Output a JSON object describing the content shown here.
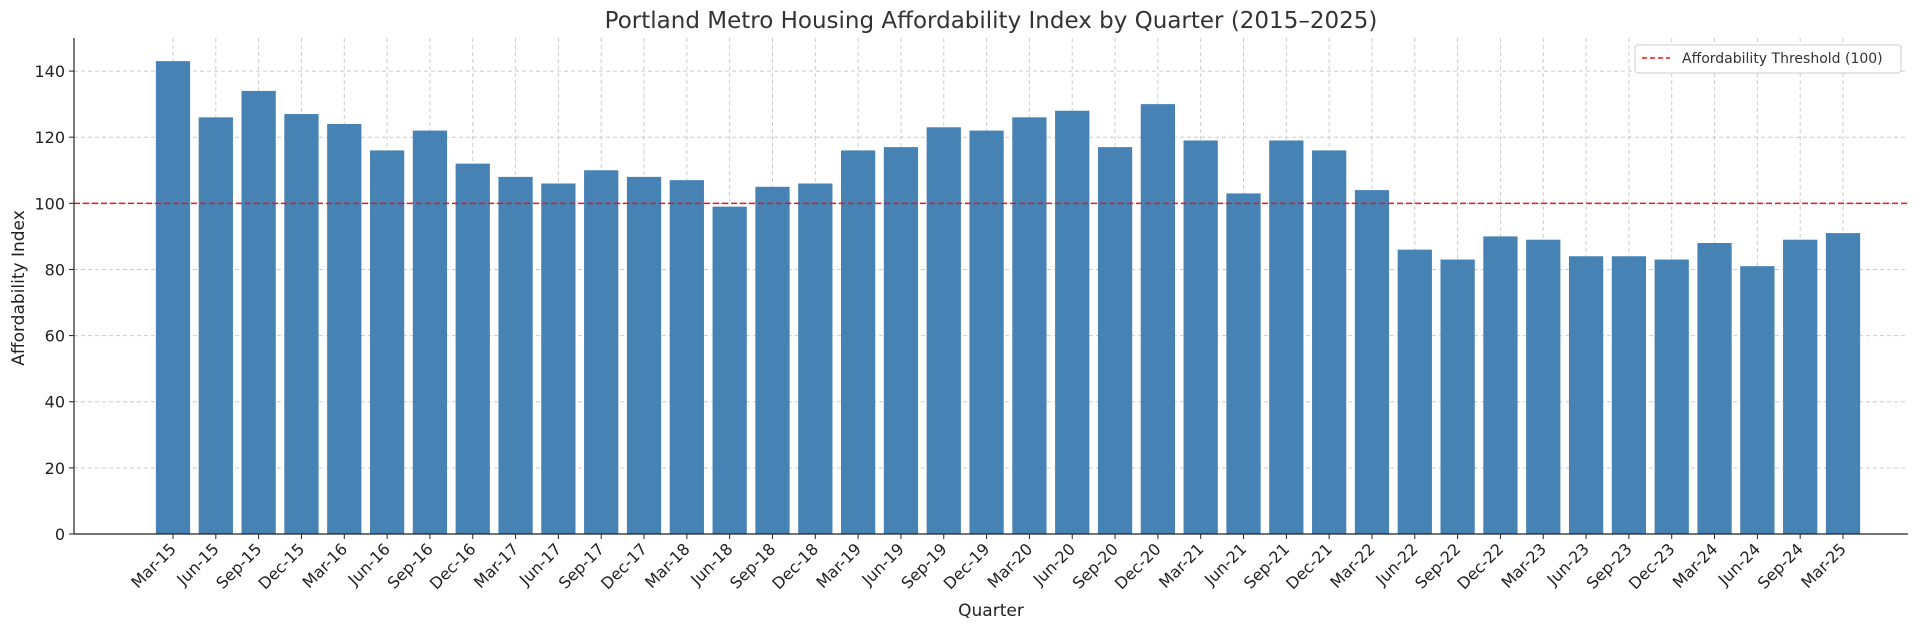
{
  "chart_data": {
    "type": "bar",
    "title": "Portland Metro Housing Affordability Index by Quarter (2015–2025)",
    "xlabel": "Quarter",
    "ylabel": "Affordability Index",
    "categories": [
      "Mar-15",
      "Jun-15",
      "Sep-15",
      "Dec-15",
      "Mar-16",
      "Jun-16",
      "Sep-16",
      "Dec-16",
      "Mar-17",
      "Jun-17",
      "Sep-17",
      "Dec-17",
      "Mar-18",
      "Jun-18",
      "Sep-18",
      "Dec-18",
      "Mar-19",
      "Jun-19",
      "Sep-19",
      "Dec-19",
      "Mar-20",
      "Jun-20",
      "Sep-20",
      "Dec-20",
      "Mar-21",
      "Jun-21",
      "Sep-21",
      "Dec-21",
      "Mar-22",
      "Jun-22",
      "Sep-22",
      "Dec-22",
      "Mar-23",
      "Jun-23",
      "Sep-23",
      "Dec-23",
      "Mar-24",
      "Jun-24",
      "Sep-24",
      "Mar-25"
    ],
    "values": [
      143,
      126,
      134,
      127,
      124,
      116,
      122,
      112,
      108,
      106,
      110,
      108,
      107,
      99,
      105,
      106,
      116,
      117,
      123,
      122,
      126,
      128,
      117,
      130,
      119,
      103,
      119,
      116,
      104,
      86,
      83,
      90,
      89,
      84,
      84,
      83,
      88,
      81,
      89,
      91
    ],
    "ylim": [
      0,
      150
    ],
    "yticks": [
      0,
      20,
      40,
      60,
      80,
      100,
      120,
      140
    ],
    "bar_color": "#4682b4",
    "grid": true,
    "reference_line": {
      "value": 100,
      "label": "Affordability Threshold (100)",
      "color": "#e41a1c",
      "style": "dashed"
    },
    "legend": {
      "placement": "top-right",
      "entries": [
        "Affordability Threshold (100)"
      ]
    }
  }
}
